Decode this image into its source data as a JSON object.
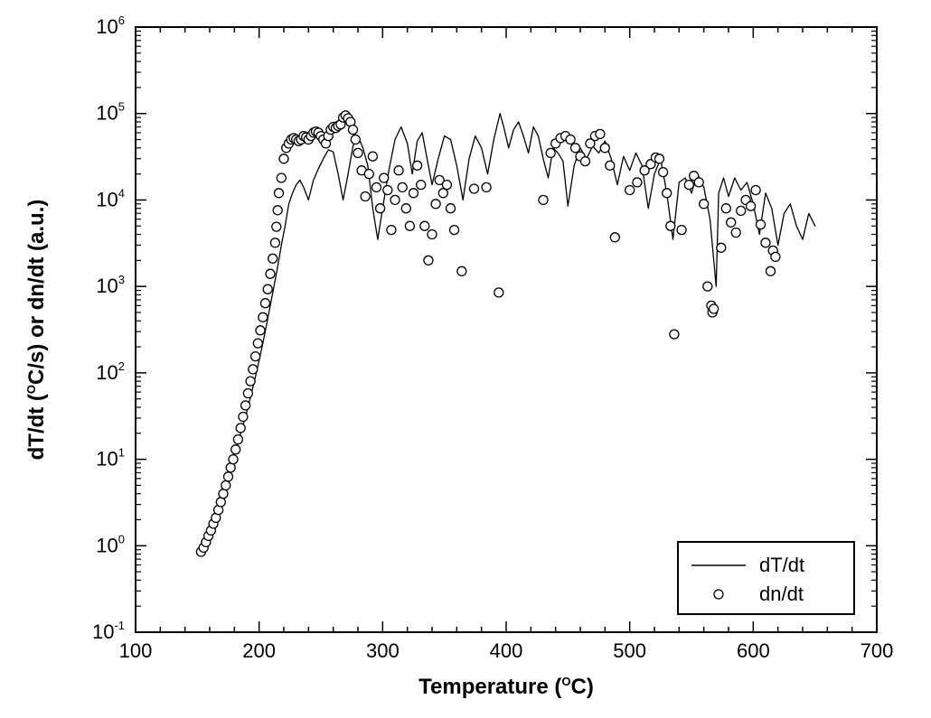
{
  "chart": {
    "type": "scatter+line",
    "background_color": "#ffffff",
    "plot_border_color": "#000000",
    "plot_border_width": 2,
    "series_color": "#000000",
    "line_width": 1.3,
    "marker_stroke": "#000000",
    "marker_fill": "#ffffff",
    "marker_stroke_width": 1.3,
    "marker_radius": 5,
    "x_axis": {
      "label": "Temperature (",
      "label_suffix": "C)",
      "label_deg": "O",
      "scale": "linear",
      "min": 100,
      "max": 700,
      "major_ticks": [
        100,
        200,
        300,
        400,
        500,
        600,
        700
      ],
      "minor_step": 20,
      "label_fontsize": 24,
      "tick_fontsize": 22,
      "label_fontweight": "bold",
      "major_tick_len": 12,
      "minor_tick_len": 6
    },
    "y_axis": {
      "label_prefix": "dT/dt (",
      "label_deg": "O",
      "label_mid": "C/s) or dn/dt (a.u.)",
      "scale": "log",
      "min_exp": -1,
      "max_exp": 6,
      "major_exponents": [
        -1,
        0,
        1,
        2,
        3,
        4,
        5,
        6
      ],
      "label_fontsize": 24,
      "tick_fontsize": 22,
      "label_fontweight": "bold",
      "major_tick_len": 12,
      "minor_tick_len": 6
    },
    "legend": {
      "border_color": "#000000",
      "border_width": 2,
      "bg": "#ffffff",
      "fontsize": 22,
      "items": [
        {
          "label": "dT/dt",
          "type": "line"
        },
        {
          "label": "dn/dt",
          "type": "marker"
        }
      ]
    },
    "dTdt_line": [
      [
        155,
        1.0
      ],
      [
        158,
        1.3
      ],
      [
        161,
        1.7
      ],
      [
        164,
        2.2
      ],
      [
        167,
        3.0
      ],
      [
        170,
        4.0
      ],
      [
        173,
        5.5
      ],
      [
        176,
        7.5
      ],
      [
        179,
        10
      ],
      [
        182,
        14
      ],
      [
        185,
        20
      ],
      [
        188,
        28
      ],
      [
        191,
        40
      ],
      [
        194,
        60
      ],
      [
        197,
        90
      ],
      [
        200,
        140
      ],
      [
        203,
        220
      ],
      [
        206,
        360
      ],
      [
        209,
        600
      ],
      [
        212,
        1000
      ],
      [
        215,
        1700
      ],
      [
        218,
        3000
      ],
      [
        221,
        5000
      ],
      [
        224,
        9000
      ],
      [
        227,
        12000
      ],
      [
        230,
        15000
      ],
      [
        233,
        17000
      ],
      [
        236,
        14000
      ],
      [
        240,
        10000
      ],
      [
        244,
        17000
      ],
      [
        248,
        23000
      ],
      [
        252,
        30000
      ],
      [
        256,
        38000
      ],
      [
        260,
        36000
      ],
      [
        264,
        20000
      ],
      [
        268,
        10000
      ],
      [
        272,
        20000
      ],
      [
        276,
        42000
      ],
      [
        280,
        55000
      ],
      [
        284,
        40000
      ],
      [
        288,
        25000
      ],
      [
        292,
        8000
      ],
      [
        296,
        3500
      ],
      [
        300,
        8000
      ],
      [
        305,
        22000
      ],
      [
        310,
        50000
      ],
      [
        315,
        70000
      ],
      [
        320,
        45000
      ],
      [
        324,
        20000
      ],
      [
        328,
        48000
      ],
      [
        332,
        60000
      ],
      [
        336,
        30000
      ],
      [
        340,
        15000
      ],
      [
        345,
        30000
      ],
      [
        350,
        55000
      ],
      [
        355,
        50000
      ],
      [
        360,
        25000
      ],
      [
        365,
        10000
      ],
      [
        370,
        30000
      ],
      [
        375,
        55000
      ],
      [
        380,
        40000
      ],
      [
        385,
        20000
      ],
      [
        390,
        50000
      ],
      [
        395,
        100000
      ],
      [
        398,
        70000
      ],
      [
        402,
        40000
      ],
      [
        406,
        65000
      ],
      [
        410,
        80000
      ],
      [
        414,
        55000
      ],
      [
        418,
        35000
      ],
      [
        422,
        70000
      ],
      [
        426,
        55000
      ],
      [
        430,
        30000
      ],
      [
        434,
        18000
      ],
      [
        438,
        40000
      ],
      [
        442,
        35000
      ],
      [
        446,
        28000
      ],
      [
        450,
        8500
      ],
      [
        455,
        25000
      ],
      [
        460,
        40000
      ],
      [
        465,
        30000
      ],
      [
        470,
        42000
      ],
      [
        475,
        35000
      ],
      [
        480,
        48000
      ],
      [
        485,
        30000
      ],
      [
        490,
        15000
      ],
      [
        495,
        32000
      ],
      [
        500,
        22000
      ],
      [
        505,
        35000
      ],
      [
        510,
        25000
      ],
      [
        515,
        8000
      ],
      [
        520,
        20000
      ],
      [
        525,
        30000
      ],
      [
        530,
        12000
      ],
      [
        535,
        3500
      ],
      [
        540,
        16000
      ],
      [
        545,
        18000
      ],
      [
        550,
        12000
      ],
      [
        555,
        20000
      ],
      [
        560,
        14000
      ],
      [
        565,
        6000
      ],
      [
        570,
        1000
      ],
      [
        572,
        12000
      ],
      [
        576,
        18000
      ],
      [
        580,
        11000
      ],
      [
        585,
        18000
      ],
      [
        590,
        13000
      ],
      [
        595,
        16000
      ],
      [
        600,
        9000
      ],
      [
        605,
        4000
      ],
      [
        610,
        12000
      ],
      [
        615,
        8000
      ],
      [
        620,
        3000
      ],
      [
        625,
        7000
      ],
      [
        630,
        9000
      ],
      [
        635,
        5000
      ],
      [
        640,
        3500
      ],
      [
        645,
        7000
      ],
      [
        650,
        5000
      ]
    ],
    "dndt_points": [
      [
        153,
        0.85
      ],
      [
        155,
        0.95
      ],
      [
        157,
        1.1
      ],
      [
        159,
        1.3
      ],
      [
        161,
        1.5
      ],
      [
        163,
        1.8
      ],
      [
        165,
        2.1
      ],
      [
        167,
        2.6
      ],
      [
        169,
        3.2
      ],
      [
        171,
        4.0
      ],
      [
        173,
        5.0
      ],
      [
        175,
        6.3
      ],
      [
        177,
        8.0
      ],
      [
        179,
        10
      ],
      [
        181,
        13
      ],
      [
        183,
        17
      ],
      [
        185,
        23
      ],
      [
        187,
        31
      ],
      [
        189,
        42
      ],
      [
        191,
        58
      ],
      [
        193,
        80
      ],
      [
        195,
        110
      ],
      [
        197,
        155
      ],
      [
        199,
        220
      ],
      [
        201,
        310
      ],
      [
        203,
        440
      ],
      [
        205,
        640
      ],
      [
        207,
        930
      ],
      [
        209,
        1400
      ],
      [
        211,
        2100
      ],
      [
        213,
        3200
      ],
      [
        214,
        4900
      ],
      [
        215,
        7600
      ],
      [
        216,
        12000
      ],
      [
        218,
        18000
      ],
      [
        220,
        30000
      ],
      [
        222,
        40000
      ],
      [
        224,
        45000
      ],
      [
        226,
        50000
      ],
      [
        228,
        52000
      ],
      [
        230,
        50000
      ],
      [
        232,
        48000
      ],
      [
        234,
        50000
      ],
      [
        236,
        55000
      ],
      [
        238,
        53000
      ],
      [
        240,
        50000
      ],
      [
        242,
        55000
      ],
      [
        244,
        60000
      ],
      [
        246,
        62000
      ],
      [
        248,
        60000
      ],
      [
        250,
        55000
      ],
      [
        252,
        50000
      ],
      [
        254,
        45000
      ],
      [
        256,
        55000
      ],
      [
        258,
        65000
      ],
      [
        260,
        70000
      ],
      [
        262,
        68000
      ],
      [
        264,
        72000
      ],
      [
        266,
        75000
      ],
      [
        268,
        90000
      ],
      [
        270,
        95000
      ],
      [
        272,
        88000
      ],
      [
        274,
        80000
      ],
      [
        276,
        65000
      ],
      [
        278,
        50000
      ],
      [
        280,
        35000
      ],
      [
        283,
        22000
      ],
      [
        286,
        11000
      ],
      [
        289,
        20000
      ],
      [
        292,
        32000
      ],
      [
        295,
        14000
      ],
      [
        298,
        8000
      ],
      [
        301,
        18000
      ],
      [
        304,
        13000
      ],
      [
        307,
        4500
      ],
      [
        310,
        10000
      ],
      [
        313,
        22000
      ],
      [
        316,
        14000
      ],
      [
        319,
        8000
      ],
      [
        322,
        5000
      ],
      [
        325,
        12000
      ],
      [
        328,
        25000
      ],
      [
        331,
        15000
      ],
      [
        334,
        5000
      ],
      [
        337,
        2000
      ],
      [
        340,
        4000
      ],
      [
        343,
        9000
      ],
      [
        346,
        17000
      ],
      [
        349,
        12000
      ],
      [
        352,
        15000
      ],
      [
        355,
        8000
      ],
      [
        358,
        4500
      ],
      [
        364,
        1500
      ],
      [
        374,
        13500
      ],
      [
        384,
        14000
      ],
      [
        394,
        850
      ],
      [
        430,
        10000
      ],
      [
        436,
        35000
      ],
      [
        440,
        45000
      ],
      [
        444,
        52000
      ],
      [
        448,
        55000
      ],
      [
        452,
        50000
      ],
      [
        456,
        40000
      ],
      [
        460,
        32000
      ],
      [
        464,
        28000
      ],
      [
        468,
        45000
      ],
      [
        472,
        55000
      ],
      [
        476,
        58000
      ],
      [
        480,
        40000
      ],
      [
        484,
        25000
      ],
      [
        488,
        3700
      ],
      [
        500,
        13000
      ],
      [
        506,
        16000
      ],
      [
        512,
        22000
      ],
      [
        517,
        26000
      ],
      [
        521,
        31000
      ],
      [
        524,
        30000
      ],
      [
        527,
        21000
      ],
      [
        530,
        12000
      ],
      [
        533,
        5000
      ],
      [
        536,
        280
      ],
      [
        542,
        4500
      ],
      [
        548,
        15000
      ],
      [
        552,
        19000
      ],
      [
        556,
        16000
      ],
      [
        560,
        9000
      ],
      [
        563,
        1000
      ],
      [
        566,
        600
      ],
      [
        567,
        500
      ],
      [
        568,
        550
      ],
      [
        574,
        2800
      ],
      [
        578,
        8000
      ],
      [
        582,
        5500
      ],
      [
        586,
        4200
      ],
      [
        590,
        7500
      ],
      [
        594,
        10000
      ],
      [
        598,
        8500
      ],
      [
        602,
        13000
      ],
      [
        606,
        5200
      ],
      [
        610,
        3200
      ],
      [
        614,
        1500
      ],
      [
        616,
        2600
      ],
      [
        618,
        2200
      ]
    ]
  }
}
